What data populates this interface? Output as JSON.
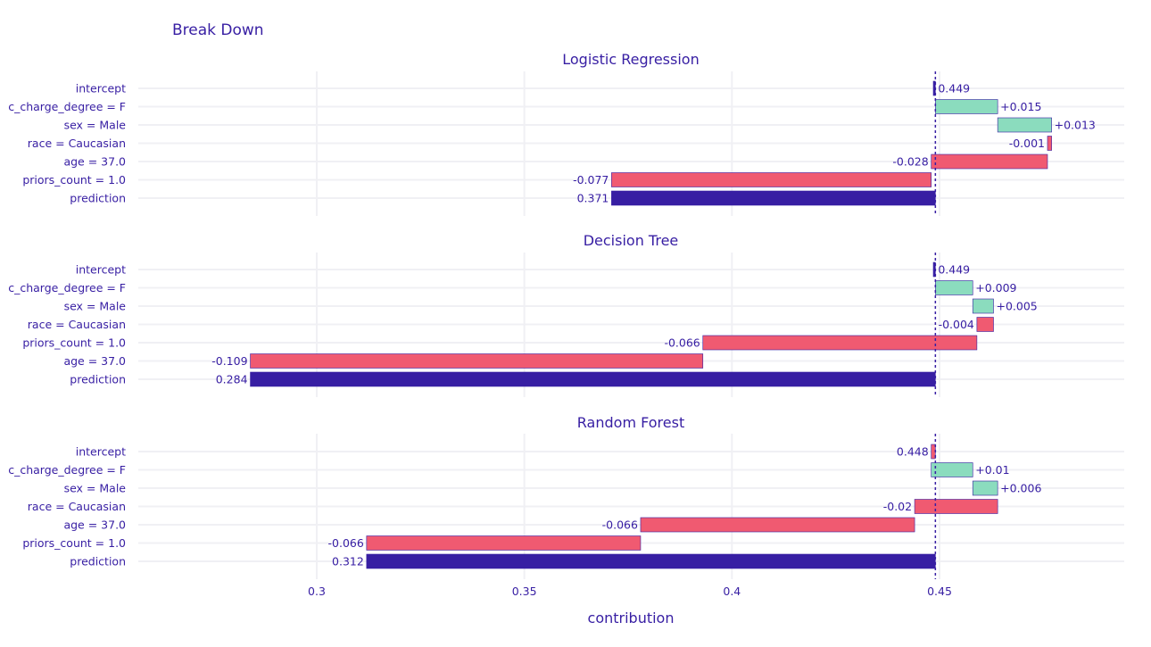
{
  "colors": {
    "text": "#371ea3",
    "increase": "#8bdcbe",
    "decrease": "#f05a71",
    "prediction": "#371ea3",
    "border": "#371ea3",
    "grid": "#f0f0f4"
  },
  "chart_data": {
    "type": "bar",
    "subtype": "break-down",
    "title": "Break Down",
    "xlabel": "contribution",
    "xlim": [
      0.257,
      0.493
    ],
    "xticks": [
      0.3,
      0.35,
      0.4,
      0.45
    ],
    "xtick_labels": [
      "0.3",
      "0.35",
      "0.4",
      "0.45"
    ],
    "baseline": 0.449,
    "grid": true,
    "legend": "none",
    "panels": [
      {
        "title": "Logistic Regression",
        "rows": [
          {
            "label": "intercept",
            "start": 0.4485,
            "end": 0.449,
            "kind": "intercept",
            "value_label": "0.449"
          },
          {
            "label": "c_charge_degree = F",
            "start": 0.449,
            "end": 0.464,
            "kind": "increase",
            "value_label": "+0.015"
          },
          {
            "label": "sex = Male",
            "start": 0.464,
            "end": 0.477,
            "kind": "increase",
            "value_label": "+0.013"
          },
          {
            "label": "race = Caucasian",
            "start": 0.477,
            "end": 0.476,
            "kind": "decrease",
            "value_label": "-0.001"
          },
          {
            "label": "age = 37.0",
            "start": 0.476,
            "end": 0.448,
            "kind": "decrease",
            "value_label": "-0.028"
          },
          {
            "label": "priors_count = 1.0",
            "start": 0.448,
            "end": 0.371,
            "kind": "decrease",
            "value_label": "-0.077"
          },
          {
            "label": "prediction",
            "start": 0.449,
            "end": 0.371,
            "kind": "prediction",
            "value_label": "0.371"
          }
        ]
      },
      {
        "title": "Decision Tree",
        "rows": [
          {
            "label": "intercept",
            "start": 0.4485,
            "end": 0.449,
            "kind": "intercept",
            "value_label": "0.449"
          },
          {
            "label": "c_charge_degree = F",
            "start": 0.449,
            "end": 0.458,
            "kind": "increase",
            "value_label": "+0.009"
          },
          {
            "label": "sex = Male",
            "start": 0.458,
            "end": 0.463,
            "kind": "increase",
            "value_label": "+0.005"
          },
          {
            "label": "race = Caucasian",
            "start": 0.463,
            "end": 0.459,
            "kind": "decrease",
            "value_label": "-0.004"
          },
          {
            "label": "priors_count = 1.0",
            "start": 0.459,
            "end": 0.393,
            "kind": "decrease",
            "value_label": "-0.066"
          },
          {
            "label": "age = 37.0",
            "start": 0.393,
            "end": 0.284,
            "kind": "decrease",
            "value_label": "-0.109"
          },
          {
            "label": "prediction",
            "start": 0.449,
            "end": 0.284,
            "kind": "prediction",
            "value_label": "0.284"
          }
        ]
      },
      {
        "title": "Random Forest",
        "rows": [
          {
            "label": "intercept",
            "start": 0.449,
            "end": 0.448,
            "kind": "decrease",
            "value_label": "0.448"
          },
          {
            "label": "c_charge_degree = F",
            "start": 0.448,
            "end": 0.458,
            "kind": "increase",
            "value_label": "+0.01"
          },
          {
            "label": "sex = Male",
            "start": 0.458,
            "end": 0.464,
            "kind": "increase",
            "value_label": "+0.006"
          },
          {
            "label": "race = Caucasian",
            "start": 0.464,
            "end": 0.444,
            "kind": "decrease",
            "value_label": "-0.02"
          },
          {
            "label": "age = 37.0",
            "start": 0.444,
            "end": 0.378,
            "kind": "decrease",
            "value_label": "-0.066"
          },
          {
            "label": "priors_count = 1.0",
            "start": 0.378,
            "end": 0.312,
            "kind": "decrease",
            "value_label": "-0.066"
          },
          {
            "label": "prediction",
            "start": 0.449,
            "end": 0.312,
            "kind": "prediction",
            "value_label": "0.312"
          }
        ]
      }
    ]
  }
}
